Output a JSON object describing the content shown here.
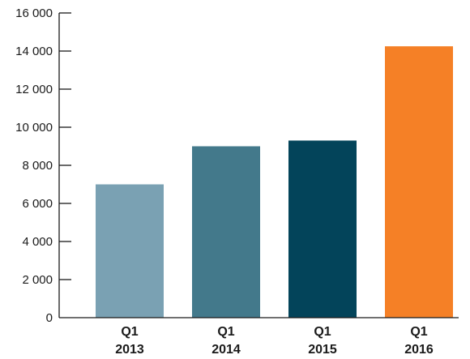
{
  "chart_data": {
    "type": "bar",
    "title": "",
    "xlabel": "",
    "ylabel": "",
    "categories": [
      {
        "line1": "Q1",
        "line2": "2013"
      },
      {
        "line1": "Q1",
        "line2": "2014"
      },
      {
        "line1": "Q1",
        "line2": "2015"
      },
      {
        "line1": "Q1",
        "line2": "2016"
      }
    ],
    "values": [
      7000,
      9000,
      9300,
      14250
    ],
    "colors": [
      "#7aa1b3",
      "#43798b",
      "#03445a",
      "#f58026"
    ],
    "ylim": [
      0,
      16000
    ],
    "yticks": [
      0,
      2000,
      4000,
      6000,
      8000,
      10000,
      12000,
      14000,
      16000
    ],
    "ytick_labels": [
      "0",
      "2 000",
      "4 000",
      "6 000",
      "8 000",
      "10 000",
      "12 000",
      "14 000",
      "16 000"
    ],
    "grid": false,
    "legend": "none"
  }
}
